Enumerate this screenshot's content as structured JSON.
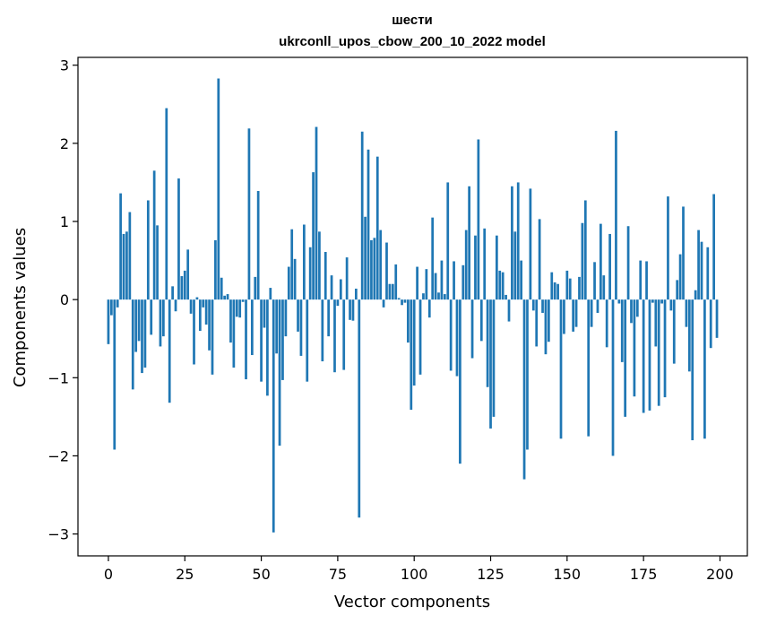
{
  "chart_data": {
    "type": "bar",
    "title": "шести",
    "subtitle": "ukrconll_upos_cbow_200_10_2022 model",
    "xlabel": "Vector components",
    "ylabel": "Components values",
    "xlim": [
      -9.95,
      208.95
    ],
    "ylim": [
      -3.28,
      3.1
    ],
    "xticks": [
      0,
      25,
      50,
      75,
      100,
      125,
      150,
      175,
      200
    ],
    "yticks": [
      -3,
      -2,
      -1,
      0,
      1,
      2,
      3
    ],
    "xtick_labels": [
      "0",
      "25",
      "50",
      "75",
      "100",
      "125",
      "150",
      "175",
      "200"
    ],
    "ytick_labels": [
      "−3",
      "−2",
      "−1",
      "0",
      "1",
      "2",
      "3"
    ],
    "grid": false,
    "bar_color": "#1f77b4",
    "x": [
      0,
      1,
      2,
      3,
      4,
      5,
      6,
      7,
      8,
      9,
      10,
      11,
      12,
      13,
      14,
      15,
      16,
      17,
      18,
      19,
      20,
      21,
      22,
      23,
      24,
      25,
      26,
      27,
      28,
      29,
      30,
      31,
      32,
      33,
      34,
      35,
      36,
      37,
      38,
      39,
      40,
      41,
      42,
      43,
      44,
      45,
      46,
      47,
      48,
      49,
      50,
      51,
      52,
      53,
      54,
      55,
      56,
      57,
      58,
      59,
      60,
      61,
      62,
      63,
      64,
      65,
      66,
      67,
      68,
      69,
      70,
      71,
      72,
      73,
      74,
      75,
      76,
      77,
      78,
      79,
      80,
      81,
      82,
      83,
      84,
      85,
      86,
      87,
      88,
      89,
      90,
      91,
      92,
      93,
      94,
      95,
      96,
      97,
      98,
      99,
      100,
      101,
      102,
      103,
      104,
      105,
      106,
      107,
      108,
      109,
      110,
      111,
      112,
      113,
      114,
      115,
      116,
      117,
      118,
      119,
      120,
      121,
      122,
      123,
      124,
      125,
      126,
      127,
      128,
      129,
      130,
      131,
      132,
      133,
      134,
      135,
      136,
      137,
      138,
      139,
      140,
      141,
      142,
      143,
      144,
      145,
      146,
      147,
      148,
      149,
      150,
      151,
      152,
      153,
      154,
      155,
      156,
      157,
      158,
      159,
      160,
      161,
      162,
      163,
      164,
      165,
      166,
      167,
      168,
      169,
      170,
      171,
      172,
      173,
      174,
      175,
      176,
      177,
      178,
      179,
      180,
      181,
      182,
      183,
      184,
      185,
      186,
      187,
      188,
      189,
      190,
      191,
      192,
      193,
      194,
      195,
      196,
      197,
      198,
      199
    ],
    "values": [
      -0.57,
      -0.2,
      -1.92,
      -0.1,
      1.36,
      0.84,
      0.87,
      1.12,
      -1.15,
      -0.67,
      -0.53,
      -0.94,
      -0.87,
      1.27,
      -0.45,
      1.65,
      0.95,
      -0.6,
      -0.47,
      2.45,
      -1.32,
      0.17,
      -0.15,
      1.55,
      0.3,
      0.37,
      0.64,
      -0.18,
      -0.83,
      0.03,
      -0.4,
      -0.1,
      -0.32,
      -0.65,
      -0.96,
      0.76,
      2.83,
      0.28,
      0.05,
      0.07,
      -0.55,
      -0.87,
      -0.22,
      -0.23,
      -0.03,
      -1.02,
      2.19,
      -0.71,
      0.29,
      1.39,
      -1.05,
      -0.36,
      -1.23,
      0.15,
      -2.98,
      -0.69,
      -1.87,
      -1.03,
      -0.47,
      0.42,
      0.9,
      0.52,
      -0.41,
      -0.72,
      0.96,
      -1.05,
      0.67,
      1.63,
      2.21,
      0.87,
      -0.79,
      0.61,
      -0.47,
      0.31,
      -0.93,
      -0.08,
      0.26,
      -0.9,
      0.54,
      -0.26,
      -0.27,
      0.14,
      -2.79,
      2.15,
      1.06,
      1.92,
      0.76,
      0.79,
      1.83,
      0.89,
      -0.1,
      0.73,
      0.2,
      0.2,
      0.45,
      0.02,
      -0.07,
      -0.04,
      -0.55,
      -1.41,
      -1.1,
      0.42,
      -0.96,
      0.08,
      0.39,
      -0.23,
      1.05,
      0.34,
      0.09,
      0.5,
      0.07,
      1.5,
      -0.91,
      0.49,
      -0.98,
      -2.1,
      0.44,
      0.89,
      1.45,
      -0.75,
      0.82,
      2.05,
      -0.53,
      0.91,
      -1.12,
      -1.65,
      -1.5,
      0.82,
      0.37,
      0.35,
      0.06,
      -0.28,
      1.45,
      0.87,
      1.5,
      0.5,
      -2.3,
      -1.92,
      1.42,
      -0.14,
      -0.6,
      1.03,
      -0.17,
      -0.7,
      -0.54,
      0.35,
      0.22,
      0.2,
      -1.78,
      -0.44,
      0.37,
      0.27,
      -0.41,
      -0.35,
      0.29,
      0.98,
      1.27,
      -1.75,
      -0.35,
      0.48,
      -0.17,
      0.97,
      0.31,
      -0.61,
      0.84,
      -2.0,
      2.16,
      -0.05,
      -0.8,
      -1.5,
      0.94,
      -0.3,
      -1.24,
      -0.22,
      0.5,
      -1.45,
      0.49,
      -1.42,
      -0.04,
      -0.6,
      -1.36,
      -0.05,
      -1.25,
      1.32,
      -0.14,
      -0.82,
      0.25,
      0.58,
      1.19,
      -0.35,
      -0.92,
      -1.8,
      0.12,
      0.89,
      0.74,
      -1.78,
      0.67,
      -0.62,
      1.35,
      -0.49
    ]
  }
}
